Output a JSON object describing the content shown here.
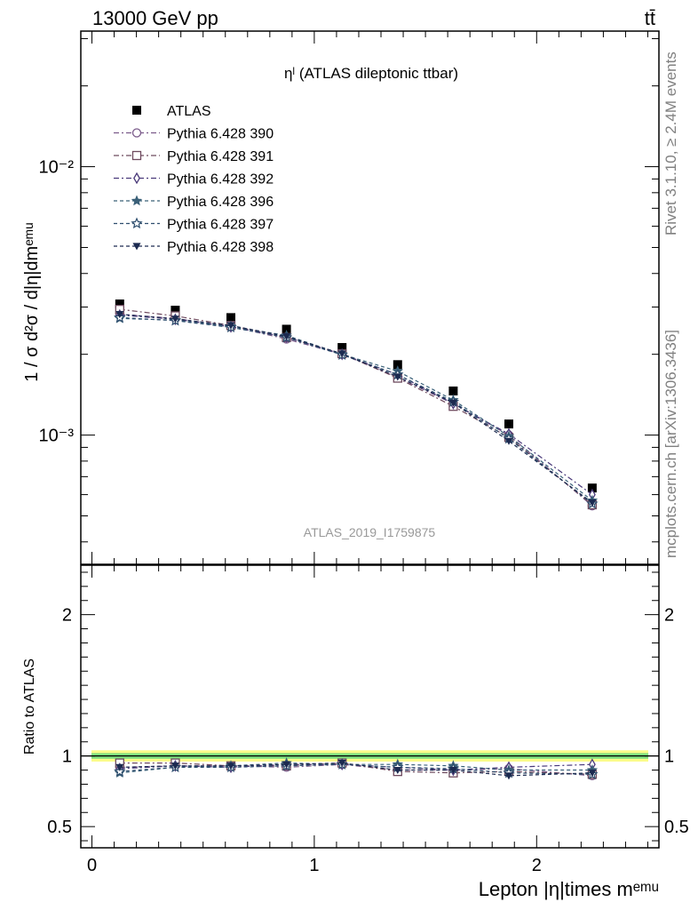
{
  "header": {
    "energy": "13000 GeV pp",
    "process": "tt̄"
  },
  "side_labels": {
    "version": "Rivet 3.1.10, ≥ 2.4M events",
    "reference": "mcplots.cern.ch [arXiv:1306.3436]"
  },
  "watermark": "ATLAS_2019_I1759875",
  "colors": {
    "ATLAS": "#000000",
    "Pythia 6.428 390": "#7a5a8a",
    "Pythia 6.428 391": "#6e4a5e",
    "Pythia 6.428 392": "#4a3a7a",
    "Pythia 6.428 396": "#3a6078",
    "Pythia 6.428 397": "#2e4e6e",
    "Pythia 6.428 398": "#1c2a50",
    "band_inner": "#7fe07f",
    "band_outer": "#fbfb8a"
  },
  "chart_data": [
    {
      "type": "scatter",
      "title": "ηˡ (ATLAS dileptonic ttbar)",
      "ylabel": "1 / σ  d²σ / d|η|dmᵉᵐᵘ",
      "yscale": "log",
      "ylim": [
        0.00033,
        0.032
      ],
      "xlim": [
        -0.05,
        2.55
      ],
      "yticks": [
        "10⁻³",
        "10⁻²"
      ],
      "legend_position": "top-left",
      "x": [
        0.125,
        0.375,
        0.625,
        0.875,
        1.125,
        1.375,
        1.625,
        1.875,
        2.25
      ],
      "series": [
        {
          "name": "ATLAS",
          "marker": "filled-square",
          "values": [
            0.00308,
            0.00292,
            0.00274,
            0.00248,
            0.00212,
            0.00183,
            0.00146,
            0.0011,
            0.000635
          ]
        },
        {
          "name": "Pythia 6.428 390",
          "marker": "open-circle",
          "dash": "6,3,2,3",
          "values": [
            0.00282,
            0.00272,
            0.00254,
            0.00228,
            0.002,
            0.00164,
            0.00131,
            0.001,
            0.000545
          ]
        },
        {
          "name": "Pythia 6.428 391",
          "marker": "open-square",
          "dash": "6,3,2,3",
          "values": [
            0.00294,
            0.00278,
            0.00256,
            0.00231,
            0.00201,
            0.00163,
            0.00128,
            0.00098,
            0.00055
          ]
        },
        {
          "name": "Pythia 6.428 392",
          "marker": "open-diamond",
          "dash": "6,3,2,3",
          "values": [
            0.0028,
            0.0027,
            0.00253,
            0.00232,
            0.002,
            0.00168,
            0.00131,
            0.00101,
            0.0006
          ]
        },
        {
          "name": "Pythia 6.428 396",
          "marker": "filled-star",
          "dash": "4,3",
          "values": [
            0.00272,
            0.00268,
            0.00254,
            0.00235,
            0.002,
            0.00173,
            0.00135,
            0.00099,
            0.00057
          ]
        },
        {
          "name": "Pythia 6.428 397",
          "marker": "open-star",
          "dash": "4,3",
          "values": [
            0.00274,
            0.00267,
            0.00252,
            0.00231,
            0.00199,
            0.00168,
            0.00133,
            0.00097,
            0.000555
          ]
        },
        {
          "name": "Pythia 6.428 398",
          "marker": "filled-triangle-down",
          "dash": "4,3",
          "values": [
            0.00282,
            0.00271,
            0.00256,
            0.00233,
            0.00201,
            0.00165,
            0.00132,
            0.00095,
            0.00056
          ]
        }
      ]
    },
    {
      "type": "scatter",
      "ylabel": "Ratio to ATLAS",
      "xlabel": "Lepton |η|times mᵉᵐᵘ",
      "ylim": [
        0.35,
        2.35
      ],
      "xlim": [
        -0.05,
        2.55
      ],
      "yticks": [
        0.5,
        1,
        2
      ],
      "xticks": [
        0,
        1,
        2
      ],
      "x": [
        0.125,
        0.375,
        0.625,
        0.875,
        1.125,
        1.375,
        1.625,
        1.875,
        2.25
      ],
      "band": {
        "inner_halfwidth": 0.02,
        "outer_halfwidth": 0.04
      },
      "series": [
        {
          "name": "Pythia 6.428 390",
          "values": [
            0.92,
            0.93,
            0.93,
            0.92,
            0.94,
            0.9,
            0.9,
            0.91,
            0.86
          ]
        },
        {
          "name": "Pythia 6.428 391",
          "values": [
            0.95,
            0.95,
            0.93,
            0.93,
            0.95,
            0.89,
            0.88,
            0.89,
            0.87
          ]
        },
        {
          "name": "Pythia 6.428 392",
          "values": [
            0.91,
            0.93,
            0.92,
            0.94,
            0.94,
            0.92,
            0.9,
            0.92,
            0.94
          ]
        },
        {
          "name": "Pythia 6.428 396",
          "values": [
            0.88,
            0.92,
            0.93,
            0.95,
            0.94,
            0.94,
            0.93,
            0.9,
            0.9
          ]
        },
        {
          "name": "Pythia 6.428 397",
          "values": [
            0.89,
            0.92,
            0.92,
            0.93,
            0.94,
            0.92,
            0.91,
            0.88,
            0.87
          ]
        },
        {
          "name": "Pythia 6.428 398",
          "values": [
            0.92,
            0.93,
            0.93,
            0.94,
            0.95,
            0.9,
            0.9,
            0.86,
            0.88
          ]
        }
      ]
    }
  ]
}
